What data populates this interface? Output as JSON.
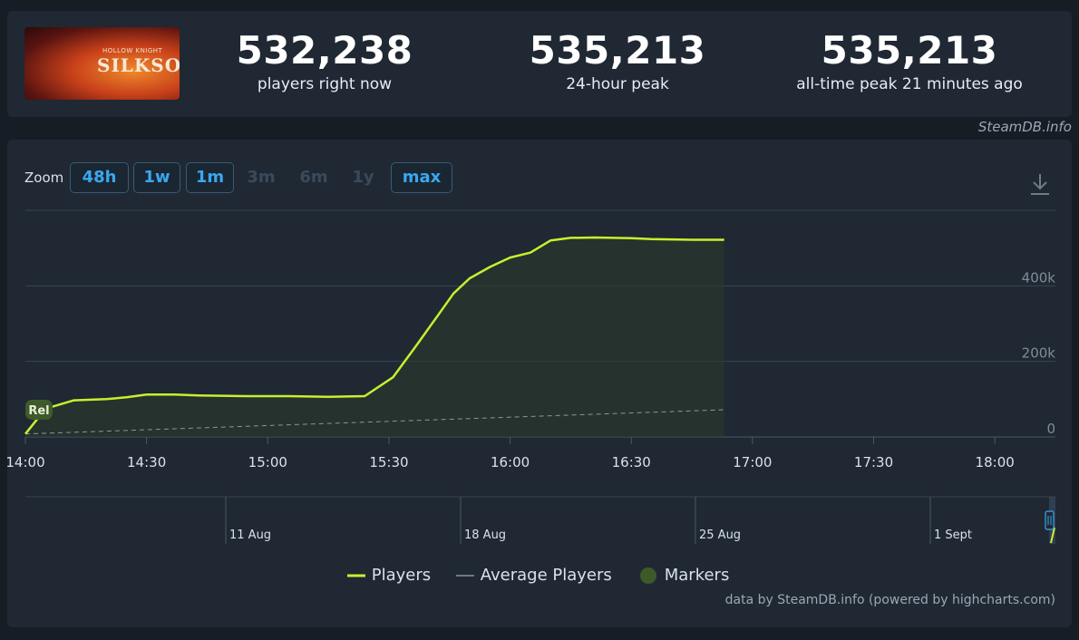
{
  "app": {
    "game_capsule": {
      "logo_small": "HOLLOW KNIGHT",
      "logo_main": "SILKSONG"
    },
    "stats": [
      {
        "value": "532,238",
        "label": "players right now"
      },
      {
        "value": "535,213",
        "label": "24-hour peak"
      },
      {
        "value": "535,213",
        "label": "all-time peak 21 minutes ago"
      }
    ],
    "credit_top": "SteamDB.info",
    "zoom": {
      "label": "Zoom",
      "buttons": [
        {
          "label": "48h",
          "state": "active"
        },
        {
          "label": "1w",
          "state": "active"
        },
        {
          "label": "1m",
          "state": "active"
        },
        {
          "label": "3m",
          "state": "disabled"
        },
        {
          "label": "6m",
          "state": "disabled"
        },
        {
          "label": "1y",
          "state": "disabled"
        },
        {
          "label": "max",
          "state": "active"
        }
      ]
    },
    "legend": {
      "players": "Players",
      "average": "Average Players",
      "markers": "Markers"
    },
    "credit_bottom": "data by SteamDB.info (powered by highcharts.com)",
    "colors": {
      "players": "#c8ef2e",
      "average": "#8a96a2",
      "marker": "#3f5a2a",
      "accent": "#39a8f0"
    }
  },
  "chart_data": {
    "type": "line",
    "x_ticks": [
      "14:00",
      "14:30",
      "15:00",
      "15:30",
      "16:00",
      "16:30",
      "17:00",
      "17:30",
      "18:00"
    ],
    "y_ticks": [
      "0",
      "200k",
      "400k"
    ],
    "ylim": [
      0,
      600000
    ],
    "xlim_minutes": [
      0,
      255
    ],
    "grid": true,
    "marker": {
      "label": "Rel",
      "x_minutes": 0
    },
    "series": [
      {
        "name": "Players",
        "points": [
          [
            0,
            8000
          ],
          [
            5,
            75000
          ],
          [
            12,
            97000
          ],
          [
            20,
            100000
          ],
          [
            25,
            105000
          ],
          [
            30,
            112000
          ],
          [
            37,
            112000
          ],
          [
            43,
            110000
          ],
          [
            55,
            108000
          ],
          [
            65,
            108000
          ],
          [
            75,
            106000
          ],
          [
            84,
            108000
          ],
          [
            91,
            158000
          ],
          [
            97,
            245000
          ],
          [
            102,
            320000
          ],
          [
            106,
            380000
          ],
          [
            110,
            420000
          ],
          [
            115,
            450000
          ],
          [
            120,
            475000
          ],
          [
            125,
            488000
          ],
          [
            130,
            520000
          ],
          [
            135,
            527000
          ],
          [
            141,
            528000
          ],
          [
            150,
            526000
          ],
          [
            155,
            524000
          ],
          [
            165,
            522000
          ],
          [
            173,
            522000
          ]
        ]
      },
      {
        "name": "Average Players",
        "points": [
          [
            0,
            8000
          ],
          [
            173,
            72000
          ]
        ]
      }
    ],
    "navigator": {
      "labels": [
        "11 Aug",
        "18 Aug",
        "25 Aug",
        "1 Sept"
      ]
    }
  }
}
